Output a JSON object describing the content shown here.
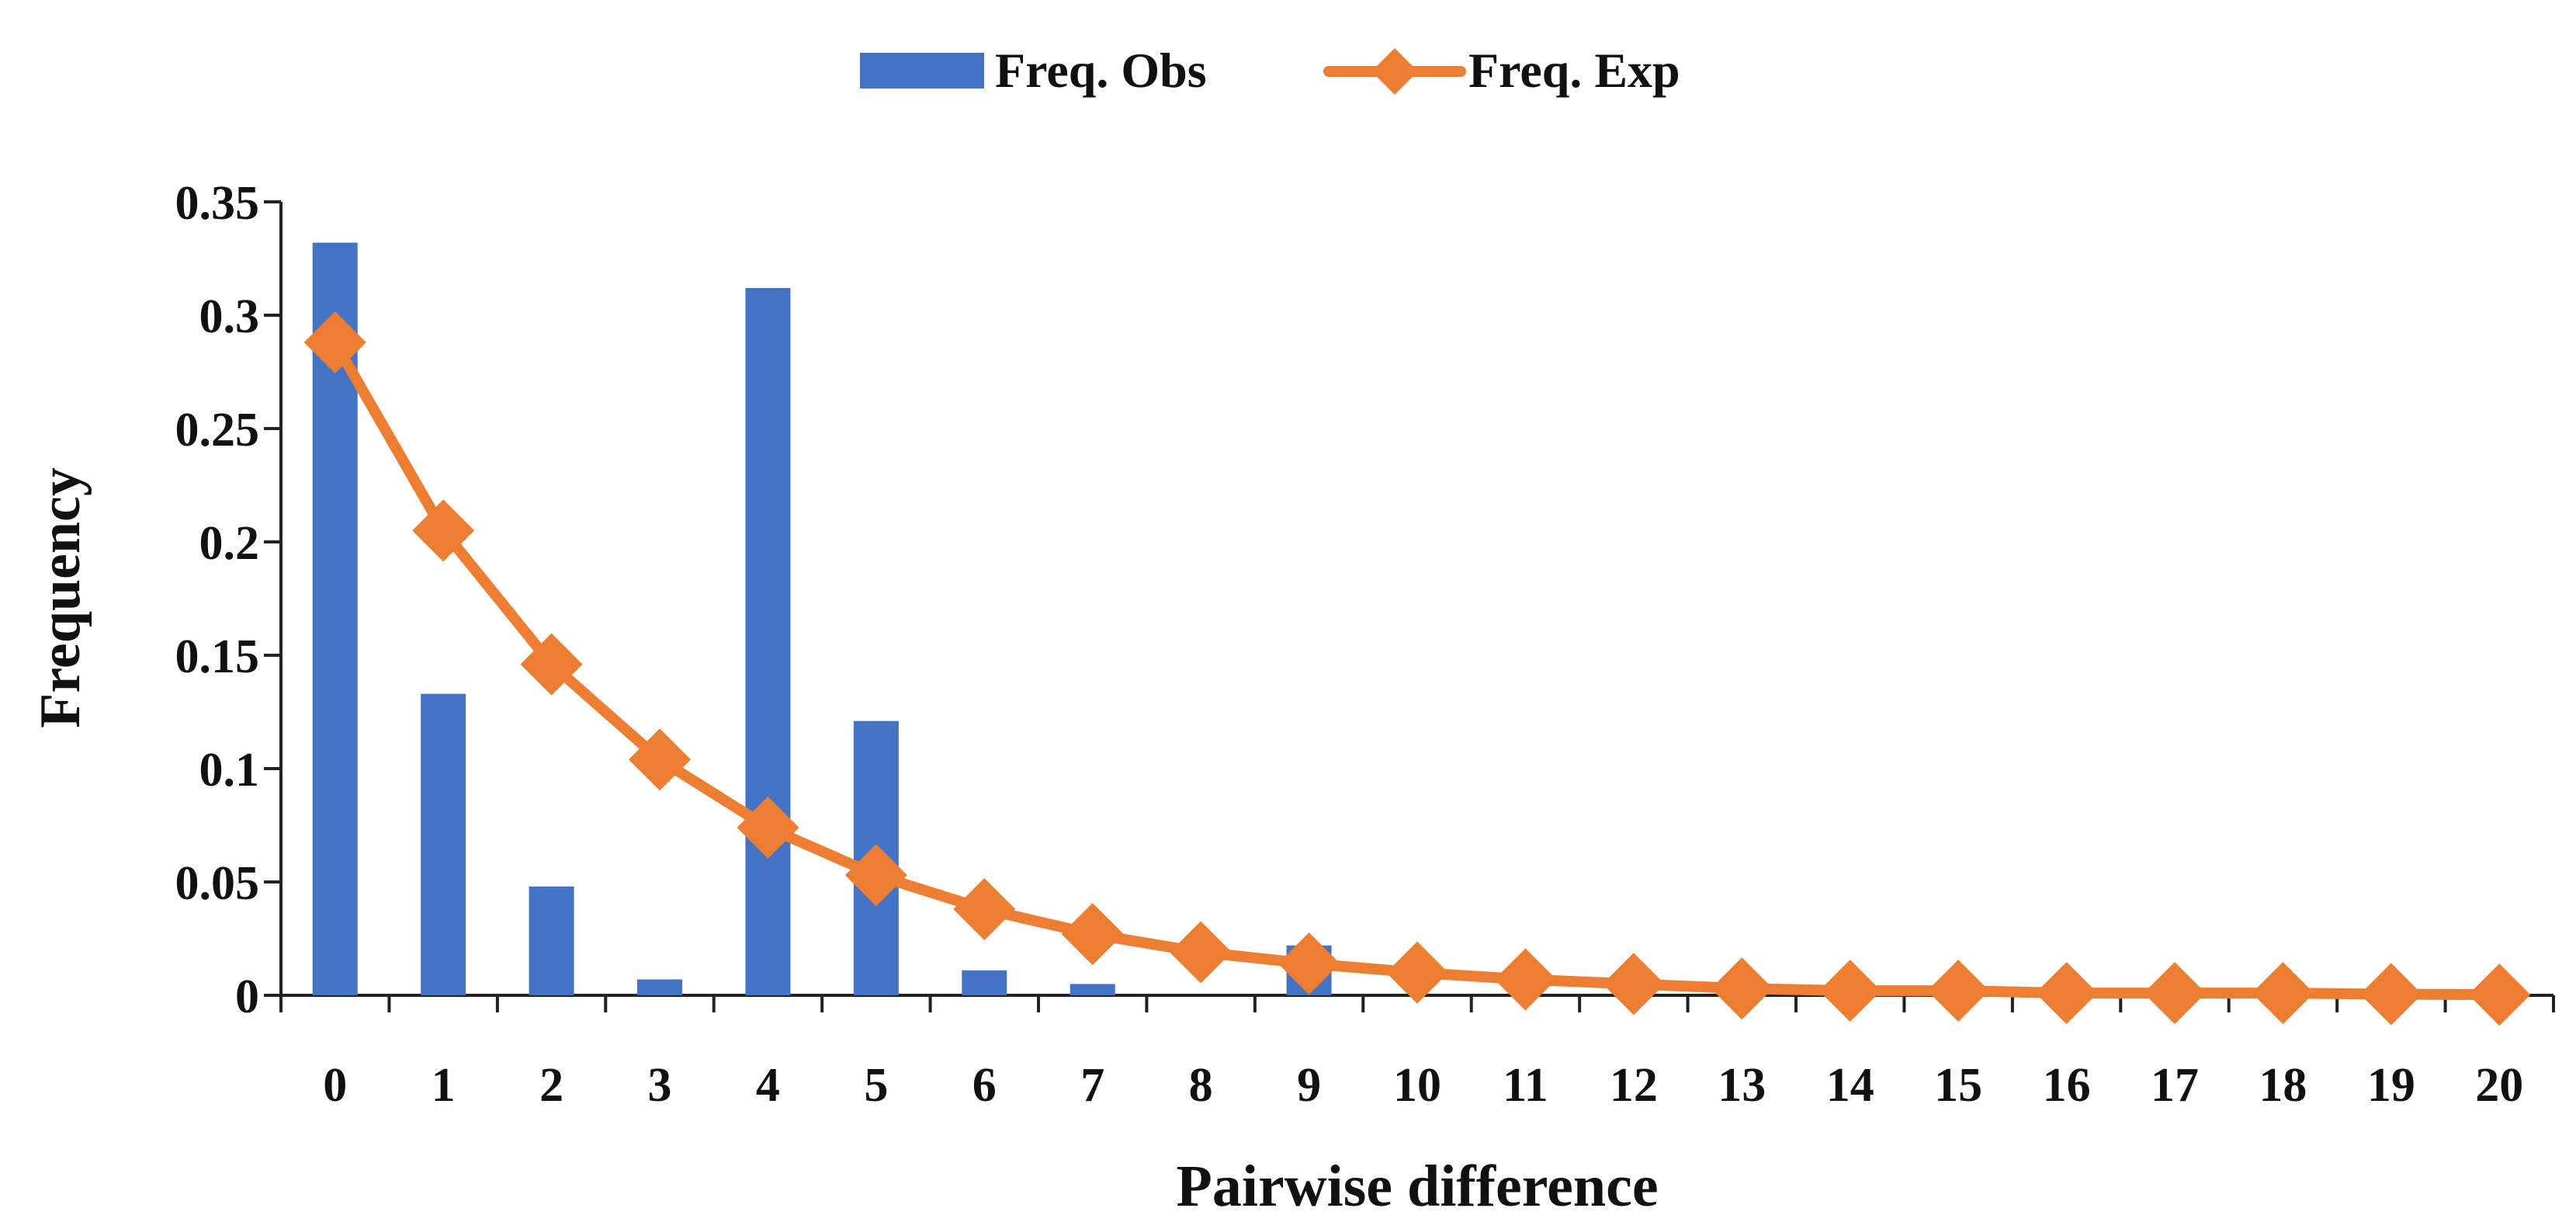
{
  "chart_data": {
    "type": "bar",
    "title": "",
    "xlabel": "Pairwise difference",
    "ylabel": "Frequency",
    "categories": [
      "0",
      "1",
      "2",
      "3",
      "4",
      "5",
      "6",
      "7",
      "8",
      "9",
      "10",
      "11",
      "12",
      "13",
      "14",
      "15",
      "16",
      "17",
      "18",
      "19",
      "20"
    ],
    "ylim": [
      0,
      0.35
    ],
    "yticks": [
      0,
      0.05,
      0.1,
      0.15,
      0.2,
      0.25,
      0.3,
      0.35
    ],
    "ytick_labels": [
      "0",
      "0.05",
      "0.1",
      "0.15",
      "0.2",
      "0.25",
      "0.3",
      "0.35"
    ],
    "grid": false,
    "legend_position": "top-center",
    "series": [
      {
        "name": "Freq. Obs",
        "kind": "bar",
        "color": "#4472C4",
        "values": [
          0.332,
          0.133,
          0.048,
          0.007,
          0.312,
          0.121,
          0.011,
          0.005,
          0,
          0.022,
          0,
          0,
          0,
          0,
          0,
          0,
          0,
          0,
          0,
          0,
          0
        ]
      },
      {
        "name": "Freq. Exp",
        "kind": "line",
        "marker": "diamond",
        "color": "#ED7D31",
        "values": [
          0.288,
          0.205,
          0.146,
          0.104,
          0.074,
          0.053,
          0.038,
          0.027,
          0.019,
          0.014,
          0.01,
          0.007,
          0.005,
          0.003,
          0.002,
          0.002,
          0.001,
          0.001,
          0.001,
          0.0005,
          0.0003
        ]
      }
    ]
  }
}
